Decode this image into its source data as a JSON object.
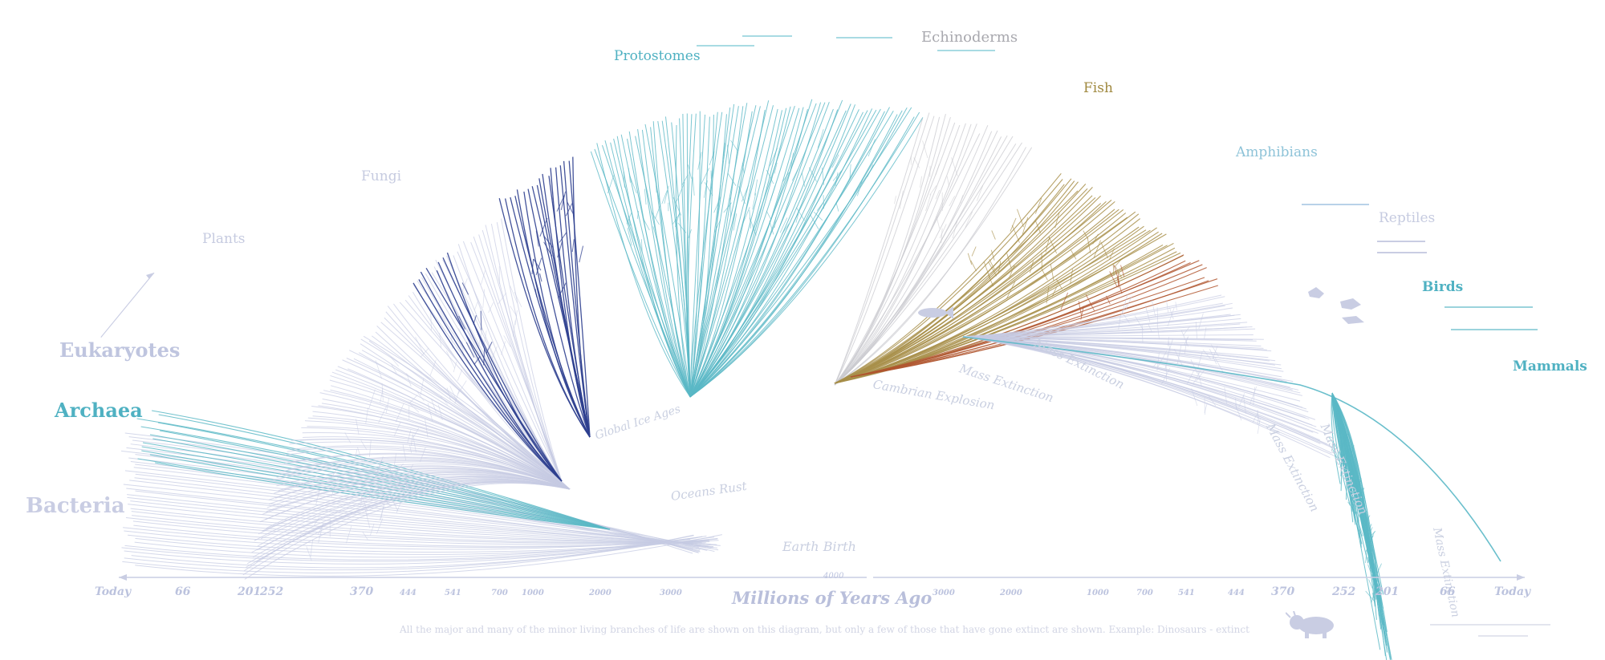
{
  "groups": {
    "bacteria": "Bacteria",
    "archaea": "Archaea",
    "eukaryotes": "Eukaryotes",
    "plants": "Plants",
    "fungi": "Fungi",
    "protostomes": "Protostomes",
    "echinoderms": "Echinoderms",
    "fish": "Fish",
    "amphibians": "Amphibians",
    "reptiles": "Reptiles",
    "birds": "Birds",
    "mammals": "Mammals"
  },
  "events": {
    "earth_birth": "Earth Birth",
    "oceans_rust": "Oceans Rust",
    "global_ice_ages": "Global Ice Ages",
    "cambrian_explosion": "Cambrian Explosion",
    "mass_extinction_1": "Mass Extinction",
    "mass_extinction_2": "Mass Extinction",
    "mass_extinction_3": "Mass Extinction",
    "mass_extinction_4": "Mass Extinction",
    "mass_extinction_5": "Mass Extinction"
  },
  "axis": {
    "title": "Millions of Years Ago",
    "center_value": "4000",
    "left_ticks": [
      "Today",
      "66",
      "201",
      "252",
      "370",
      "444",
      "541",
      "700",
      "1000",
      "2000",
      "3000"
    ],
    "right_ticks": [
      "3000",
      "2000",
      "1000",
      "700",
      "541",
      "444",
      "370",
      "252",
      "201",
      "66",
      "Today"
    ]
  },
  "footer": {
    "note": "All the major and many of the minor living branches of life are shown on this diagram, but only a few of those that have gone extinct are shown. Example: Dinosaurs - extinct"
  },
  "colors": {
    "lavender": "#c6cbe3",
    "teal": "#5ab8c6",
    "navy": "#2e3f8f",
    "olive": "#a88f4a",
    "rust": "#b0562f",
    "grey": "#c9c9cf",
    "label_grey": "#b9bed6",
    "label_teal": "#4fb1c2"
  }
}
